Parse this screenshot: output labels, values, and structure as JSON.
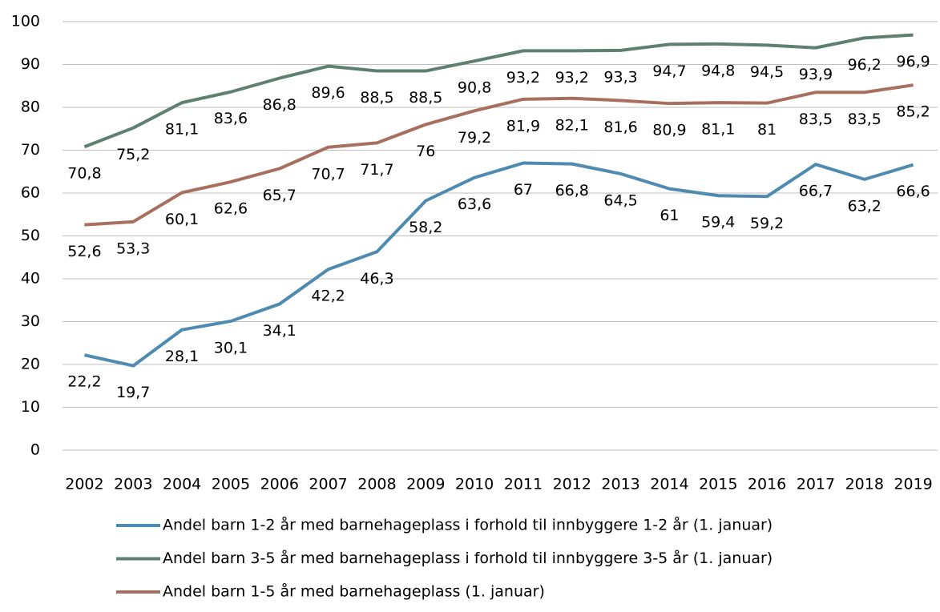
{
  "chart_data": {
    "type": "line",
    "categories": [
      "2002",
      "2003",
      "2004",
      "2005",
      "2006",
      "2007",
      "2008",
      "2009",
      "2010",
      "2011",
      "2012",
      "2013",
      "2014",
      "2015",
      "2016",
      "2017",
      "2018",
      "2019"
    ],
    "series": [
      {
        "name": "Andel barn 1-2 år med barnehageplass i forhold til innbyggere 1-2 år (1. januar)",
        "color": "#4f8bb0",
        "values": [
          22.2,
          19.7,
          28.1,
          30.1,
          34.1,
          42.2,
          46.3,
          58.2,
          63.6,
          67,
          66.8,
          64.5,
          61,
          59.4,
          59.2,
          66.7,
          63.2,
          66.6
        ],
        "value_labels": [
          "22,2",
          "19,7",
          "28,1",
          "30,1",
          "34,1",
          "42,2",
          "46,3",
          "58,2",
          "63,6",
          "67",
          "66,8",
          "64,5",
          "61",
          "59,4",
          "59,2",
          "66,7",
          "63,2",
          "66,6"
        ]
      },
      {
        "name": "Andel barn 3-5 år med barnehageplass i forhold til innbyggere 3-5 år (1. januar)",
        "color": "#5d8070",
        "values": [
          70.8,
          75.2,
          81.1,
          83.6,
          86.8,
          89.6,
          88.5,
          88.5,
          90.8,
          93.2,
          93.2,
          93.3,
          94.7,
          94.8,
          94.5,
          93.9,
          96.2,
          96.9
        ],
        "value_labels": [
          "70,8",
          "75,2",
          "81,1",
          "83,6",
          "86,8",
          "89,6",
          "88,5",
          "88,5",
          "90,8",
          "93,2",
          "93,2",
          "93,3",
          "94,7",
          "94,8",
          "94,5",
          "93,9",
          "96,2",
          "96,9"
        ]
      },
      {
        "name": "Andel barn 1-5 år med barnehageplass (1. januar)",
        "color": "#a86f5e",
        "values": [
          52.6,
          53.3,
          60.1,
          62.6,
          65.7,
          70.7,
          71.7,
          76,
          79.2,
          81.9,
          82.1,
          81.6,
          80.9,
          81.1,
          81,
          83.5,
          83.5,
          85.2
        ],
        "value_labels": [
          "52,6",
          "53,3",
          "60,1",
          "62,6",
          "65,7",
          "70,7",
          "71,7",
          "76",
          "79,2",
          "81,9",
          "82,1",
          "81,6",
          "80,9",
          "81,1",
          "81",
          "83,5",
          "83,5",
          "85,2"
        ]
      }
    ],
    "ylim": [
      0,
      100
    ],
    "yticks": [
      0,
      10,
      20,
      30,
      40,
      50,
      60,
      70,
      80,
      90,
      100
    ],
    "grid": true,
    "legend": "bottom"
  }
}
